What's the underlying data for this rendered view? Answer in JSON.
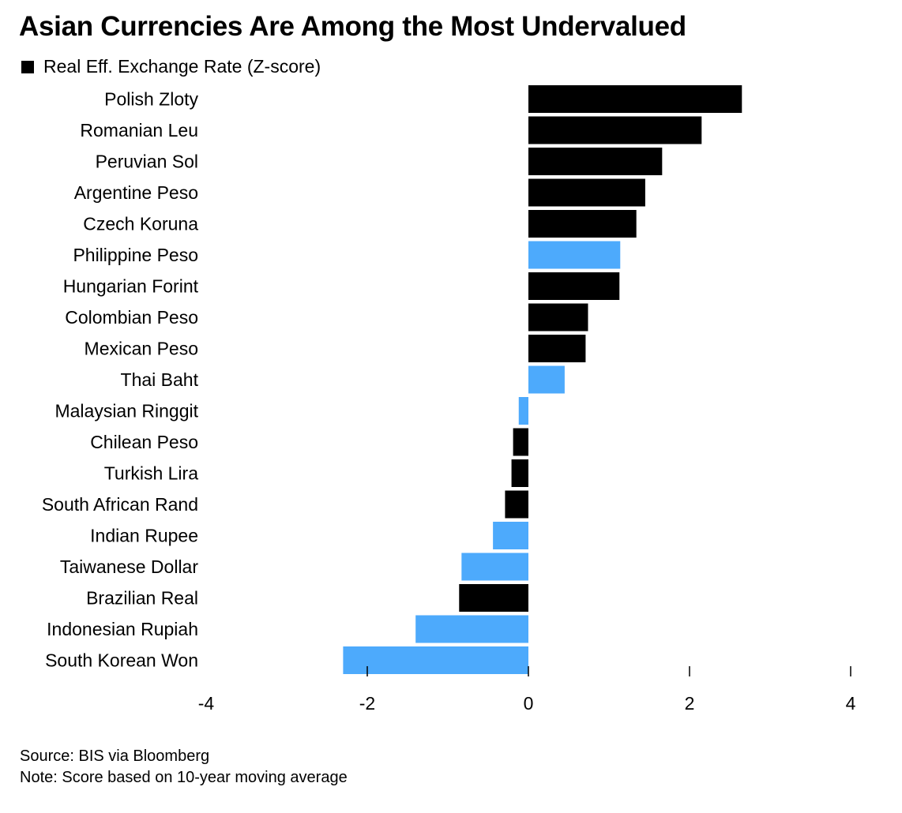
{
  "colors": {
    "default_bar": "#000000",
    "asian_bar": "#4daafc",
    "text": "#000000",
    "background": "#ffffff"
  },
  "footer": {
    "source": "Source: BIS via Bloomberg",
    "note": "Note: Score based on 10-year moving average"
  },
  "chart_data": {
    "type": "bar",
    "orientation": "horizontal",
    "title": "Asian Currencies Are Among the Most Undervalued",
    "xlabel": "",
    "ylabel": "",
    "xlim": [
      -4,
      4
    ],
    "x_ticks": [
      -4,
      -2,
      0,
      2,
      4
    ],
    "grid": false,
    "legend_position": "top-left",
    "legend": [
      {
        "label": "Real Eff. Exchange Rate (Z-score)",
        "color": "#000000"
      }
    ],
    "categories": [
      "Polish Zloty",
      "Romanian Leu",
      "Peruvian Sol",
      "Argentine Peso",
      "Czech Koruna",
      "Philippine Peso",
      "Hungarian Forint",
      "Colombian Peso",
      "Mexican Peso",
      "Thai Baht",
      "Malaysian Ringgit",
      "Chilean Peso",
      "Turkish Lira",
      "South African Rand",
      "Indian Rupee",
      "Taiwanese Dollar",
      "Brazilian Real",
      "Indonesian Rupiah",
      "South Korean Won"
    ],
    "values": [
      2.65,
      2.15,
      1.66,
      1.45,
      1.34,
      1.14,
      1.13,
      0.74,
      0.71,
      0.45,
      -0.12,
      -0.19,
      -0.21,
      -0.29,
      -0.44,
      -0.83,
      -0.86,
      -1.4,
      -2.3
    ],
    "highlight": [
      false,
      false,
      false,
      false,
      false,
      true,
      false,
      false,
      false,
      true,
      true,
      false,
      false,
      false,
      true,
      true,
      false,
      true,
      true
    ]
  }
}
